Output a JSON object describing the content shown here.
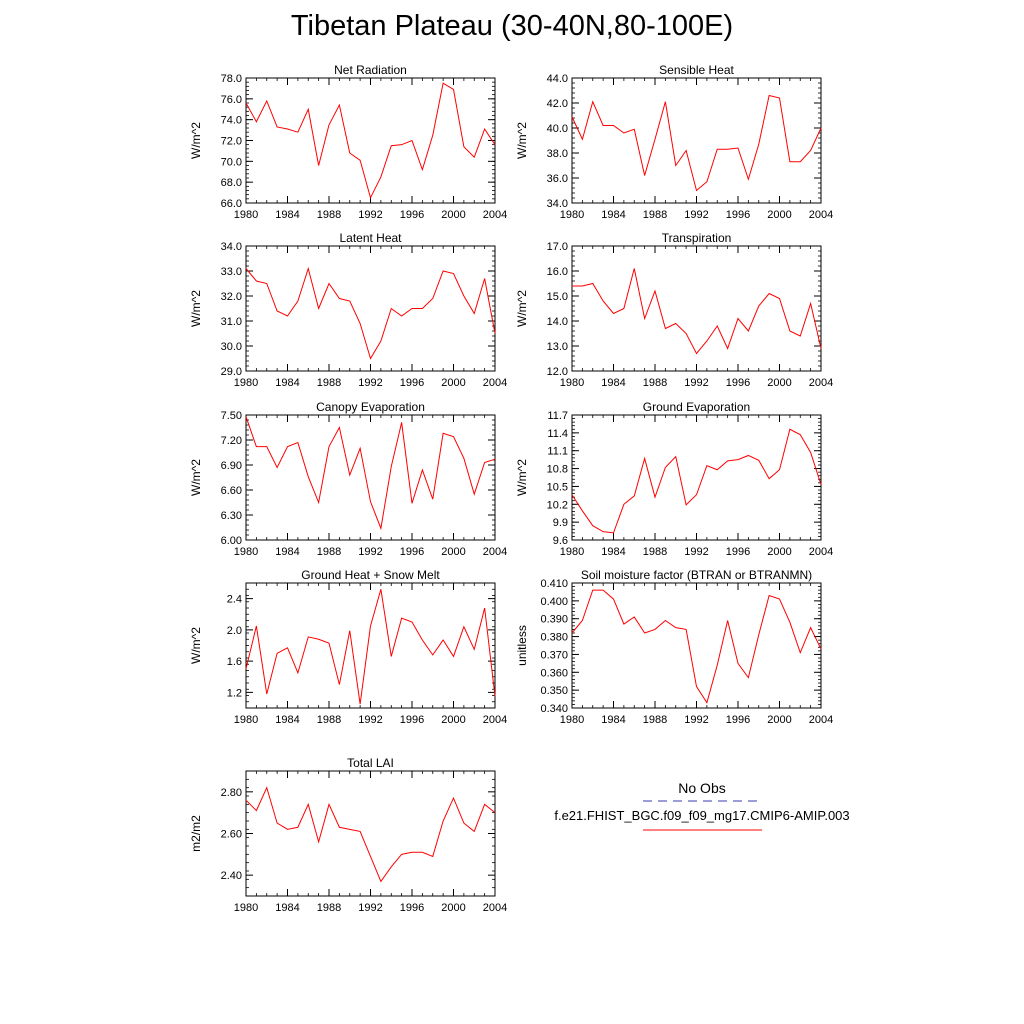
{
  "title": "Tibetan Plateau (30-40N,80-100E)",
  "legend": {
    "obs_label": "No Obs",
    "model_label": "f.e21.FHIST_BGC.f09_f09_mg17.CMIP6-AMIP.003",
    "obs_color": "#3a3ab0",
    "model_color": "#ff0000"
  },
  "chart_data": [
    {
      "type": "line",
      "title": "Net Radiation",
      "xlabel": "",
      "ylabel": "W/m^2",
      "xlim": [
        1980,
        2004
      ],
      "ylim": [
        66,
        78
      ],
      "yticks": [
        66,
        68,
        70,
        72,
        74,
        76,
        78
      ],
      "ytick_labels": [
        "66.0",
        "68.0",
        "70.0",
        "72.0",
        "74.0",
        "76.0",
        "78.0"
      ],
      "xticks": [
        1980,
        1984,
        1988,
        1992,
        1996,
        2000,
        2004
      ],
      "x": [
        1980,
        1981,
        1982,
        1983,
        1984,
        1985,
        1986,
        1987,
        1988,
        1989,
        1990,
        1991,
        1992,
        1993,
        1994,
        1995,
        1996,
        1997,
        1998,
        1999,
        2000,
        2001,
        2002,
        2003,
        2004
      ],
      "series": [
        {
          "color": "#ff0000",
          "values": [
            75.6,
            73.8,
            75.8,
            73.3,
            73.1,
            72.8,
            75.0,
            69.6,
            73.5,
            75.4,
            70.8,
            70.1,
            66.5,
            68.5,
            71.5,
            71.6,
            72.0,
            69.2,
            72.5,
            77.5,
            76.9,
            71.4,
            70.4,
            73.1,
            71.6
          ]
        }
      ]
    },
    {
      "type": "line",
      "title": "Sensible Heat",
      "xlabel": "",
      "ylabel": "W/m^2",
      "xlim": [
        1980,
        2004
      ],
      "ylim": [
        34,
        44
      ],
      "yticks": [
        34,
        36,
        38,
        40,
        42,
        44
      ],
      "ytick_labels": [
        "34.0",
        "36.0",
        "38.0",
        "40.0",
        "42.0",
        "44.0"
      ],
      "xticks": [
        1980,
        1984,
        1988,
        1992,
        1996,
        2000,
        2004
      ],
      "x": [
        1980,
        1981,
        1982,
        1983,
        1984,
        1985,
        1986,
        1987,
        1988,
        1989,
        1990,
        1991,
        1992,
        1993,
        1994,
        1995,
        1996,
        1997,
        1998,
        1999,
        2000,
        2001,
        2002,
        2003,
        2004
      ],
      "series": [
        {
          "color": "#ff0000",
          "values": [
            40.9,
            39.1,
            42.1,
            40.2,
            40.2,
            39.6,
            39.9,
            36.2,
            39.1,
            42.1,
            37.0,
            38.2,
            35.0,
            35.7,
            38.3,
            38.3,
            38.4,
            35.9,
            38.7,
            42.6,
            42.4,
            37.3,
            37.3,
            38.2,
            40.0
          ]
        }
      ]
    },
    {
      "type": "line",
      "title": "Latent Heat",
      "xlabel": "",
      "ylabel": "W/m^2",
      "xlim": [
        1980,
        2004
      ],
      "ylim": [
        29,
        34
      ],
      "yticks": [
        29,
        30,
        31,
        32,
        33,
        34
      ],
      "ytick_labels": [
        "29.0",
        "30.0",
        "31.0",
        "32.0",
        "33.0",
        "34.0"
      ],
      "xticks": [
        1980,
        1984,
        1988,
        1992,
        1996,
        2000,
        2004
      ],
      "x": [
        1980,
        1981,
        1982,
        1983,
        1984,
        1985,
        1986,
        1987,
        1988,
        1989,
        1990,
        1991,
        1992,
        1993,
        1994,
        1995,
        1996,
        1997,
        1998,
        1999,
        2000,
        2001,
        2002,
        2003,
        2004
      ],
      "series": [
        {
          "color": "#ff0000",
          "values": [
            33.1,
            32.6,
            32.5,
            31.4,
            31.2,
            31.8,
            33.1,
            31.5,
            32.5,
            31.9,
            31.8,
            30.9,
            29.5,
            30.2,
            31.5,
            31.2,
            31.5,
            31.5,
            31.9,
            33.0,
            32.9,
            32.0,
            31.3,
            32.7,
            30.5
          ]
        }
      ]
    },
    {
      "type": "line",
      "title": "Transpiration",
      "xlabel": "",
      "ylabel": "W/m^2",
      "xlim": [
        1980,
        2004
      ],
      "ylim": [
        12,
        17
      ],
      "yticks": [
        12,
        13,
        14,
        15,
        16,
        17
      ],
      "ytick_labels": [
        "12.0",
        "13.0",
        "14.0",
        "15.0",
        "16.0",
        "17.0"
      ],
      "xticks": [
        1980,
        1984,
        1988,
        1992,
        1996,
        2000,
        2004
      ],
      "x": [
        1980,
        1981,
        1982,
        1983,
        1984,
        1985,
        1986,
        1987,
        1988,
        1989,
        1990,
        1991,
        1992,
        1993,
        1994,
        1995,
        1996,
        1997,
        1998,
        1999,
        2000,
        2001,
        2002,
        2003,
        2004
      ],
      "series": [
        {
          "color": "#ff0000",
          "values": [
            15.4,
            15.4,
            15.5,
            14.8,
            14.3,
            14.5,
            16.1,
            14.1,
            15.2,
            13.7,
            13.9,
            13.5,
            12.7,
            13.2,
            13.8,
            12.9,
            14.1,
            13.6,
            14.6,
            15.1,
            14.9,
            13.6,
            13.4,
            14.7,
            12.9
          ]
        }
      ]
    },
    {
      "type": "line",
      "title": "Canopy Evaporation",
      "xlabel": "",
      "ylabel": "W/m^2",
      "xlim": [
        1980,
        2004
      ],
      "ylim": [
        6.0,
        7.5
      ],
      "yticks": [
        6.0,
        6.3,
        6.6,
        6.9,
        7.2,
        7.5
      ],
      "ytick_labels": [
        "6.00",
        "6.30",
        "6.60",
        "6.90",
        "7.20",
        "7.50"
      ],
      "xticks": [
        1980,
        1984,
        1988,
        1992,
        1996,
        2000,
        2004
      ],
      "x": [
        1980,
        1981,
        1982,
        1983,
        1984,
        1985,
        1986,
        1987,
        1988,
        1989,
        1990,
        1991,
        1992,
        1993,
        1994,
        1995,
        1996,
        1997,
        1998,
        1999,
        2000,
        2001,
        2002,
        2003,
        2004
      ],
      "series": [
        {
          "color": "#ff0000",
          "values": [
            7.48,
            7.12,
            7.12,
            6.87,
            7.12,
            7.17,
            6.76,
            6.45,
            7.12,
            7.35,
            6.78,
            7.1,
            6.46,
            6.14,
            6.88,
            7.41,
            6.44,
            6.84,
            6.49,
            7.28,
            7.24,
            6.98,
            6.55,
            6.93,
            6.97
          ]
        }
      ]
    },
    {
      "type": "line",
      "title": "Ground Evaporation",
      "xlabel": "",
      "ylabel": "W/m^2",
      "xlim": [
        1980,
        2004
      ],
      "ylim": [
        9.6,
        11.7
      ],
      "yticks": [
        9.6,
        9.9,
        10.2,
        10.5,
        10.8,
        11.1,
        11.4,
        11.7
      ],
      "ytick_labels": [
        "9.6",
        "9.9",
        "10.2",
        "10.5",
        "10.8",
        "11.1",
        "11.4",
        "11.7"
      ],
      "xticks": [
        1980,
        1984,
        1988,
        1992,
        1996,
        2000,
        2004
      ],
      "x": [
        1980,
        1981,
        1982,
        1983,
        1984,
        1985,
        1986,
        1987,
        1988,
        1989,
        1990,
        1991,
        1992,
        1993,
        1994,
        1995,
        1996,
        1997,
        1998,
        1999,
        2000,
        2001,
        2002,
        2003,
        2004
      ],
      "series": [
        {
          "color": "#ff0000",
          "values": [
            10.36,
            10.09,
            9.84,
            9.74,
            9.72,
            10.2,
            10.34,
            10.97,
            10.32,
            10.82,
            11.0,
            10.19,
            10.36,
            10.85,
            10.78,
            10.93,
            10.95,
            11.02,
            10.94,
            10.63,
            10.78,
            11.46,
            11.37,
            11.07,
            10.53
          ]
        }
      ]
    },
    {
      "type": "line",
      "title": "Ground Heat + Snow Melt",
      "xlabel": "",
      "ylabel": "W/m^2",
      "xlim": [
        1980,
        2004
      ],
      "ylim": [
        1.0,
        2.6
      ],
      "yticks": [
        1.2,
        1.6,
        2.0,
        2.4
      ],
      "ytick_labels": [
        "1.2",
        "1.6",
        "2.0",
        "2.4"
      ],
      "xticks": [
        1980,
        1984,
        1988,
        1992,
        1996,
        2000,
        2004
      ],
      "x": [
        1980,
        1981,
        1982,
        1983,
        1984,
        1985,
        1986,
        1987,
        1988,
        1989,
        1990,
        1991,
        1992,
        1993,
        1994,
        1995,
        1996,
        1997,
        1998,
        1999,
        2000,
        2001,
        2002,
        2003,
        2004
      ],
      "series": [
        {
          "color": "#ff0000",
          "values": [
            1.5,
            2.05,
            1.18,
            1.7,
            1.77,
            1.45,
            1.91,
            1.88,
            1.83,
            1.3,
            1.99,
            1.05,
            2.05,
            2.52,
            1.66,
            2.15,
            2.1,
            1.87,
            1.68,
            1.87,
            1.66,
            2.04,
            1.75,
            2.28,
            1.15
          ]
        }
      ]
    },
    {
      "type": "line",
      "title": "Soil moisture factor (BTRAN or BTRANMN)",
      "xlabel": "",
      "ylabel": "unitless",
      "xlim": [
        1980,
        2004
      ],
      "ylim": [
        0.34,
        0.41
      ],
      "yticks": [
        0.34,
        0.35,
        0.36,
        0.37,
        0.38,
        0.39,
        0.4,
        0.41
      ],
      "ytick_labels": [
        "0.340",
        "0.350",
        "0.360",
        "0.370",
        "0.380",
        "0.390",
        "0.400",
        "0.410"
      ],
      "xticks": [
        1980,
        1984,
        1988,
        1992,
        1996,
        2000,
        2004
      ],
      "x": [
        1980,
        1981,
        1982,
        1983,
        1984,
        1985,
        1986,
        1987,
        1988,
        1989,
        1990,
        1991,
        1992,
        1993,
        1994,
        1995,
        1996,
        1997,
        1998,
        1999,
        2000,
        2001,
        2002,
        2003,
        2004
      ],
      "series": [
        {
          "color": "#ff0000",
          "values": [
            0.382,
            0.389,
            0.406,
            0.406,
            0.401,
            0.387,
            0.391,
            0.382,
            0.384,
            0.389,
            0.385,
            0.384,
            0.352,
            0.343,
            0.364,
            0.389,
            0.365,
            0.357,
            0.381,
            0.403,
            0.401,
            0.388,
            0.371,
            0.385,
            0.373
          ]
        }
      ]
    },
    {
      "type": "line",
      "title": "Total LAI",
      "xlabel": "",
      "ylabel": "m2/m2",
      "xlim": [
        1980,
        2004
      ],
      "ylim": [
        2.3,
        2.9
      ],
      "yticks": [
        2.4,
        2.6,
        2.8
      ],
      "ytick_labels": [
        "2.40",
        "2.60",
        "2.80"
      ],
      "xticks": [
        1980,
        1984,
        1988,
        1992,
        1996,
        2000,
        2004
      ],
      "x": [
        1980,
        1981,
        1982,
        1983,
        1984,
        1985,
        1986,
        1987,
        1988,
        1989,
        1990,
        1991,
        1992,
        1993,
        1994,
        1995,
        1996,
        1997,
        1998,
        1999,
        2000,
        2001,
        2002,
        2003,
        2004
      ],
      "series": [
        {
          "color": "#ff0000",
          "values": [
            2.76,
            2.71,
            2.82,
            2.65,
            2.62,
            2.63,
            2.74,
            2.56,
            2.74,
            2.63,
            2.62,
            2.61,
            2.49,
            2.37,
            2.44,
            2.5,
            2.51,
            2.51,
            2.49,
            2.66,
            2.77,
            2.65,
            2.61,
            2.74,
            2.7
          ]
        }
      ]
    }
  ]
}
